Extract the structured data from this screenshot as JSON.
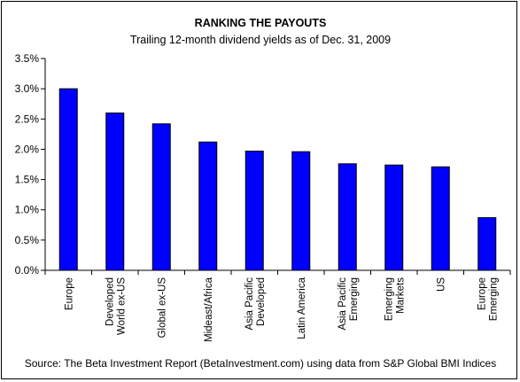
{
  "chart_data": {
    "type": "bar",
    "title": "RANKING THE PAYOUTS",
    "subtitle": "Trailing 12-month dividend yields as of Dec. 31, 2009",
    "categories": [
      [
        "Europe"
      ],
      [
        "Developed",
        "World ex-US"
      ],
      [
        "Global ex-US"
      ],
      [
        "Mideast/Africa"
      ],
      [
        "Asia Pacific",
        "Developed"
      ],
      [
        "Latin America"
      ],
      [
        "Asia Pacific",
        "Emerging"
      ],
      [
        "Emerging",
        "Markets"
      ],
      [
        "US"
      ],
      [
        "Europe",
        "Emerging"
      ]
    ],
    "values": [
      3.0,
      2.6,
      2.42,
      2.12,
      1.97,
      1.96,
      1.76,
      1.74,
      1.71,
      0.87
    ],
    "unit": "%",
    "ylim": [
      0,
      3.5
    ],
    "yticks": [
      0.0,
      0.5,
      1.0,
      1.5,
      2.0,
      2.5,
      3.0,
      3.5
    ],
    "ytick_labels": [
      "0.0%",
      "0.5%",
      "1.0%",
      "1.5%",
      "2.0%",
      "2.5%",
      "3.0%",
      "3.5%"
    ],
    "grid": false,
    "legend": "none",
    "bar_color": "#0000ff",
    "source": "Source: The Beta Investment Report (BetaInvestment.com) using data from  S&P Global BMI Indices"
  }
}
